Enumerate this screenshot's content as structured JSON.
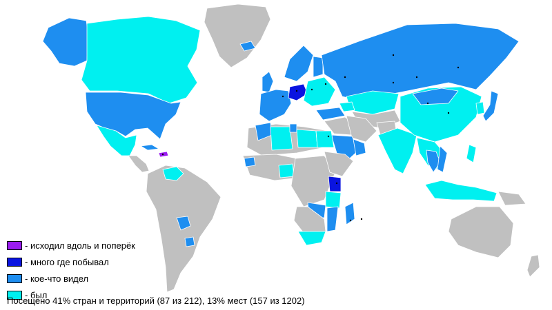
{
  "colors": {
    "not_visited": "#c0c0c0",
    "ocean": "#ffffff",
    "crossed": "#9b1cf0",
    "many": "#0a14e0",
    "some": "#1e8ef0",
    "been": "#00f0f0",
    "city_dot": "#000000"
  },
  "legend": [
    {
      "key": "crossed",
      "label": "- исходил вдоль и поперёк",
      "color": "#9b1cf0"
    },
    {
      "key": "many",
      "label": "- много где побывал",
      "color": "#0a14e0"
    },
    {
      "key": "some",
      "label": "- кое-что видел",
      "color": "#1e8ef0"
    },
    {
      "key": "been",
      "label": "- был",
      "color": "#00f0f0"
    }
  ],
  "stats": {
    "text": "Посещено 41% стран и территорий (87 из 212), 13% мест (157 из 1202)",
    "countries_percent": 41,
    "countries_visited": 87,
    "countries_total": 212,
    "places_percent": 13,
    "places_visited": 157,
    "places_total": 1202
  },
  "regions": [
    {
      "name": "greenland",
      "status": "not_visited"
    },
    {
      "name": "alaska",
      "status": "some"
    },
    {
      "name": "canada",
      "status": "been"
    },
    {
      "name": "usa",
      "status": "some"
    },
    {
      "name": "mexico",
      "status": "been"
    },
    {
      "name": "central-america",
      "status": "not_visited"
    },
    {
      "name": "cuba",
      "status": "some"
    },
    {
      "name": "hispaniola",
      "status": "crossed"
    },
    {
      "name": "south-america",
      "status": "not_visited"
    },
    {
      "name": "venezuela",
      "status": "been"
    },
    {
      "name": "paraguay",
      "status": "some"
    },
    {
      "name": "uruguay",
      "status": "some"
    },
    {
      "name": "iceland",
      "status": "some"
    },
    {
      "name": "uk",
      "status": "some"
    },
    {
      "name": "scandinavia",
      "status": "some"
    },
    {
      "name": "finland",
      "status": "some"
    },
    {
      "name": "western-europe",
      "status": "some"
    },
    {
      "name": "germany",
      "status": "many"
    },
    {
      "name": "eastern-europe",
      "status": "been"
    },
    {
      "name": "russia",
      "status": "some"
    },
    {
      "name": "kazakhstan",
      "status": "been"
    },
    {
      "name": "central-asia",
      "status": "not_visited"
    },
    {
      "name": "turkey",
      "status": "some"
    },
    {
      "name": "caucasus",
      "status": "been"
    },
    {
      "name": "middle-east",
      "status": "not_visited"
    },
    {
      "name": "saudi-arabia",
      "status": "some"
    },
    {
      "name": "uae-oman",
      "status": "some"
    },
    {
      "name": "iran",
      "status": "not_visited"
    },
    {
      "name": "afghanistan-pakistan",
      "status": "not_visited"
    },
    {
      "name": "india",
      "status": "been"
    },
    {
      "name": "china",
      "status": "been"
    },
    {
      "name": "mongolia",
      "status": "some"
    },
    {
      "name": "japan",
      "status": "some"
    },
    {
      "name": "korea",
      "status": "been"
    },
    {
      "name": "southeast-asia",
      "status": "been"
    },
    {
      "name": "vietnam",
      "status": "some"
    },
    {
      "name": "thailand-cambodia",
      "status": "some"
    },
    {
      "name": "indonesia",
      "status": "been"
    },
    {
      "name": "philippines",
      "status": "been"
    },
    {
      "name": "north-africa",
      "status": "not_visited"
    },
    {
      "name": "morocco",
      "status": "some"
    },
    {
      "name": "algeria",
      "status": "been"
    },
    {
      "name": "tunisia",
      "status": "some"
    },
    {
      "name": "libya",
      "status": "been"
    },
    {
      "name": "egypt",
      "status": "been"
    },
    {
      "name": "west-africa",
      "status": "not_visited"
    },
    {
      "name": "senegal",
      "status": "some"
    },
    {
      "name": "nigeria",
      "status": "been"
    },
    {
      "name": "central-africa",
      "status": "not_visited"
    },
    {
      "name": "east-africa",
      "status": "not_visited"
    },
    {
      "name": "kenya",
      "status": "many"
    },
    {
      "name": "tanzania",
      "status": "been"
    },
    {
      "name": "zambia",
      "status": "some"
    },
    {
      "name": "mozambique",
      "status": "some"
    },
    {
      "name": "southern-africa",
      "status": "not_visited"
    },
    {
      "name": "south-africa",
      "status": "been"
    },
    {
      "name": "madagascar",
      "status": "some"
    },
    {
      "name": "australia",
      "status": "not_visited"
    },
    {
      "name": "new-zealand",
      "status": "not_visited"
    },
    {
      "name": "new-guinea",
      "status": "not_visited"
    }
  ]
}
